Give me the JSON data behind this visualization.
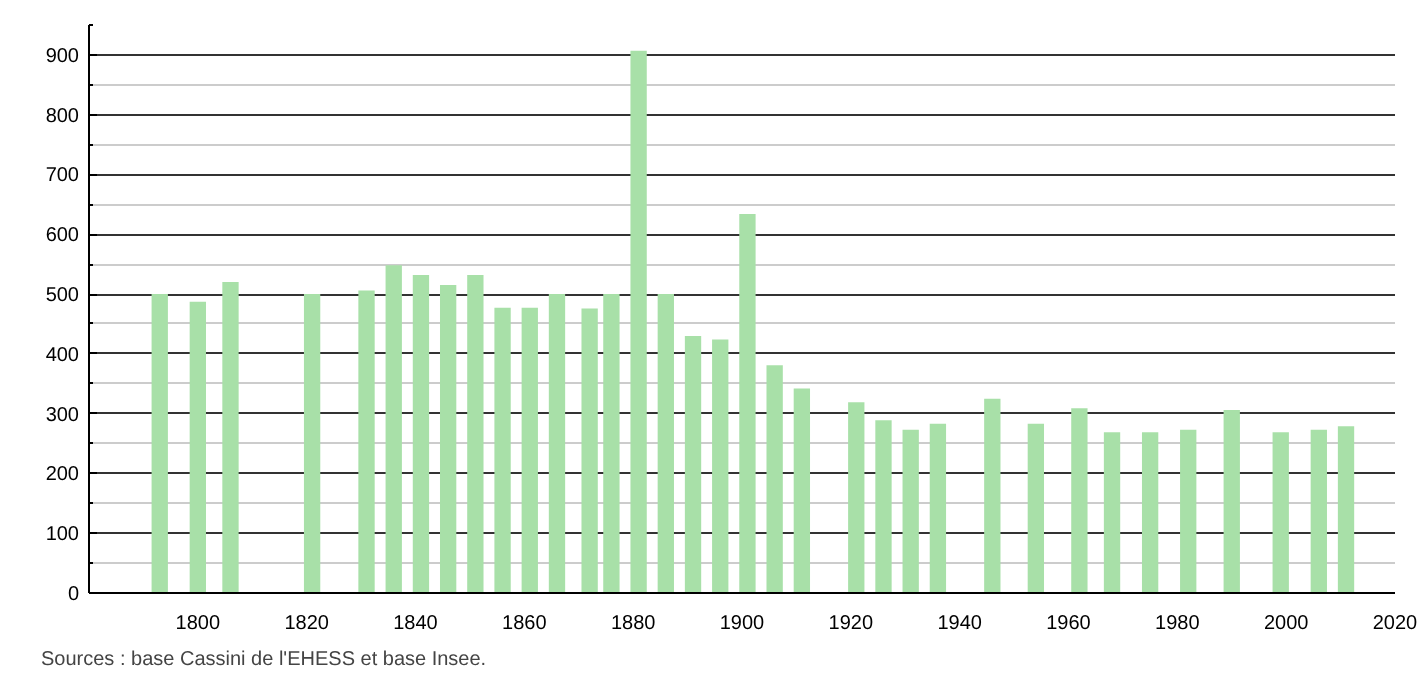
{
  "chart_data": {
    "type": "bar",
    "x": [
      1793,
      1800,
      1806,
      1821,
      1831,
      1836,
      1841,
      1846,
      1851,
      1856,
      1861,
      1866,
      1872,
      1876,
      1881,
      1886,
      1891,
      1896,
      1901,
      1906,
      1911,
      1921,
      1926,
      1931,
      1936,
      1946,
      1954,
      1962,
      1968,
      1975,
      1982,
      1990,
      1999,
      2006,
      2011
    ],
    "values": [
      500,
      487,
      520,
      500,
      506,
      548,
      532,
      515,
      532,
      477,
      477,
      500,
      476,
      500,
      907,
      500,
      430,
      424,
      634,
      381,
      342,
      319,
      289,
      273,
      283,
      325,
      283,
      309,
      269,
      269,
      273,
      306,
      269,
      273,
      279
    ],
    "color": "#a8e0a8",
    "xlim": [
      1780,
      2020
    ],
    "xticks": [
      1800,
      1820,
      1840,
      1860,
      1880,
      1900,
      1920,
      1940,
      1960,
      1980,
      2000,
      2020
    ],
    "ylim": [
      0,
      950
    ],
    "yticks": [
      0,
      100,
      200,
      300,
      400,
      500,
      600,
      700,
      800,
      900
    ],
    "grid": "y",
    "annotations": [
      "Sources : base Cassini de l'EHESS et base Insee."
    ]
  }
}
